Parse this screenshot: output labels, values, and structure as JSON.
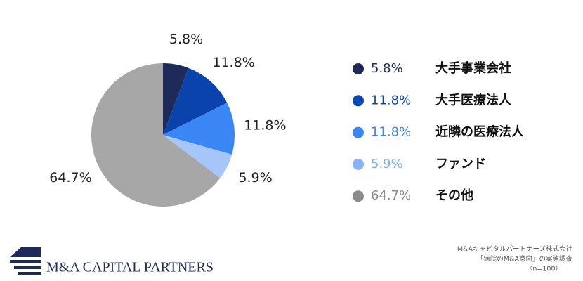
{
  "chart_data": {
    "type": "pie",
    "categories": [
      "大手事業会社",
      "大手医療法人",
      "近隣の医療法人",
      "ファンド",
      "その他"
    ],
    "values": [
      5.8,
      11.8,
      11.8,
      5.9,
      64.7
    ],
    "value_labels": [
      "5.8%",
      "11.8%",
      "11.8%",
      "5.9%",
      "64.7%"
    ],
    "colors": [
      "#1e2b5a",
      "#0b43ad",
      "#3b86f5",
      "#a6c6fa",
      "#a7a7a7"
    ],
    "legend_colors": [
      "#1e2b5a",
      "#0b47b5",
      "#3b86f5",
      "#86b3f7",
      "#8a8a8a"
    ],
    "legend": "right"
  },
  "footer": {
    "logo": "M&A CAPITAL PARTNERS",
    "source": [
      "M&Aキャピタルパートナーズ株式会社",
      "「病院のM&A意向」の実態調査",
      "（n=100）"
    ]
  }
}
